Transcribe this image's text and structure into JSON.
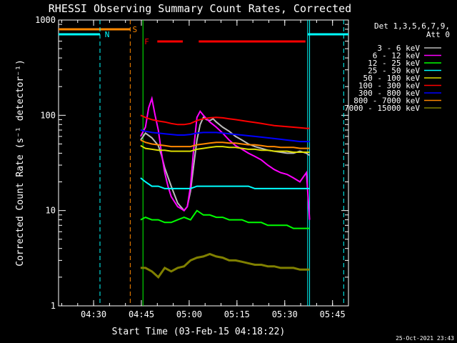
{
  "chart_data": {
    "type": "line",
    "title": "RHESSI Observing Summary Count Rates, Corrected",
    "xlabel": "Start Time (03-Feb-15 04:18:22)",
    "ylabel": "Corrected Count Rate (s⁻¹ detector⁻¹)",
    "yscale": "log",
    "ylim": [
      1,
      1000
    ],
    "y_ticks": [
      {
        "value": 1,
        "label": "1"
      },
      {
        "value": 10,
        "label": "10"
      },
      {
        "value": 100,
        "label": "100"
      },
      {
        "value": 1000,
        "label": "1000"
      }
    ],
    "xlim_minutes": [
      19,
      74
    ],
    "x_ticks": [
      {
        "minute": 30,
        "label": "04:30"
      },
      {
        "minute": 45,
        "label": "04:45"
      },
      {
        "minute": 60,
        "label": "05:00"
      },
      {
        "minute": 75,
        "label": "05:15"
      },
      {
        "minute": 90,
        "label": "05:30"
      },
      {
        "minute": 105,
        "label": "05:45"
      }
    ],
    "legend_title": "Det 1,3,5,6,7,9,",
    "legend_subtitle": "Att 0",
    "footer_timestamp": "25-Oct-2021 23:43",
    "series": [
      {
        "name": "3 - 6 keV",
        "color": "#000000",
        "points": [
          [
            44.5,
            55
          ],
          [
            46,
            65
          ],
          [
            48,
            58
          ],
          [
            50,
            48
          ],
          [
            51,
            38
          ],
          [
            52,
            28
          ],
          [
            54,
            18
          ],
          [
            56,
            12
          ],
          [
            58,
            10
          ],
          [
            59,
            11
          ],
          [
            60,
            16
          ],
          [
            61,
            30
          ],
          [
            62,
            55
          ],
          [
            63,
            80
          ],
          [
            64,
            95
          ],
          [
            65,
            90
          ],
          [
            66,
            88
          ],
          [
            67,
            92
          ],
          [
            68,
            85
          ],
          [
            70,
            75
          ],
          [
            72,
            68
          ],
          [
            74,
            60
          ],
          [
            76,
            55
          ],
          [
            78,
            50
          ],
          [
            80,
            47
          ],
          [
            82,
            45
          ],
          [
            84,
            43
          ],
          [
            86,
            42
          ],
          [
            88,
            41
          ],
          [
            90,
            40
          ],
          [
            92,
            40
          ],
          [
            94,
            42
          ],
          [
            96,
            40
          ],
          [
            97,
            38
          ]
        ]
      },
      {
        "name": "6 - 12 keV",
        "color": "#ff00ff",
        "points": [
          [
            44.5,
            60
          ],
          [
            46,
            75
          ],
          [
            47,
            120
          ],
          [
            48,
            150
          ],
          [
            49,
            100
          ],
          [
            50,
            70
          ],
          [
            51,
            40
          ],
          [
            52,
            25
          ],
          [
            53,
            18
          ],
          [
            54,
            14
          ],
          [
            56,
            11
          ],
          [
            58,
            10
          ],
          [
            59,
            11
          ],
          [
            60,
            18
          ],
          [
            61,
            45
          ],
          [
            62,
            95
          ],
          [
            63,
            110
          ],
          [
            64,
            100
          ],
          [
            65,
            92
          ],
          [
            66,
            85
          ],
          [
            67,
            80
          ],
          [
            68,
            75
          ],
          [
            70,
            65
          ],
          [
            72,
            55
          ],
          [
            74,
            48
          ],
          [
            76,
            44
          ],
          [
            78,
            40
          ],
          [
            80,
            37
          ],
          [
            82,
            34
          ],
          [
            84,
            30
          ],
          [
            86,
            27
          ],
          [
            88,
            25
          ],
          [
            90,
            24
          ],
          [
            92,
            22
          ],
          [
            94,
            20
          ],
          [
            96,
            25
          ],
          [
            97,
            8
          ]
        ]
      },
      {
        "name": "12 - 25 keV",
        "color": "#00ff00",
        "points": [
          [
            44.5,
            8
          ],
          [
            46,
            8.5
          ],
          [
            48,
            8
          ],
          [
            50,
            8
          ],
          [
            52,
            7.5
          ],
          [
            54,
            7.5
          ],
          [
            56,
            8
          ],
          [
            58,
            8.5
          ],
          [
            60,
            8
          ],
          [
            62,
            10
          ],
          [
            64,
            9
          ],
          [
            66,
            9
          ],
          [
            68,
            8.5
          ],
          [
            70,
            8.5
          ],
          [
            72,
            8
          ],
          [
            74,
            8
          ],
          [
            76,
            8
          ],
          [
            78,
            7.5
          ],
          [
            80,
            7.5
          ],
          [
            82,
            7.5
          ],
          [
            84,
            7
          ],
          [
            86,
            7
          ],
          [
            88,
            7
          ],
          [
            90,
            7
          ],
          [
            92,
            6.5
          ],
          [
            94,
            6.5
          ],
          [
            96,
            6.5
          ],
          [
            97,
            6.5
          ]
        ]
      },
      {
        "name": "25 - 50 keV",
        "color": "#00ffff",
        "points": [
          [
            44.5,
            22
          ],
          [
            46,
            20
          ],
          [
            48,
            18
          ],
          [
            50,
            18
          ],
          [
            52,
            17
          ],
          [
            54,
            17
          ],
          [
            56,
            17
          ],
          [
            58,
            17
          ],
          [
            60,
            17
          ],
          [
            62,
            18
          ],
          [
            64,
            18
          ],
          [
            66,
            18
          ],
          [
            68,
            18
          ],
          [
            70,
            18
          ],
          [
            72,
            18
          ],
          [
            74,
            18
          ],
          [
            76,
            18
          ],
          [
            78,
            18
          ],
          [
            80,
            17
          ],
          [
            82,
            17
          ],
          [
            84,
            17
          ],
          [
            86,
            17
          ],
          [
            88,
            17
          ],
          [
            90,
            17
          ],
          [
            92,
            17
          ],
          [
            94,
            17
          ],
          [
            96,
            17
          ],
          [
            97,
            17
          ]
        ]
      },
      {
        "name": "50 - 100 keV",
        "color": "#dddd00",
        "points": [
          [
            44.5,
            48
          ],
          [
            46,
            45
          ],
          [
            48,
            44
          ],
          [
            50,
            43
          ],
          [
            52,
            43
          ],
          [
            54,
            42
          ],
          [
            56,
            42
          ],
          [
            58,
            42
          ],
          [
            60,
            42
          ],
          [
            62,
            44
          ],
          [
            64,
            45
          ],
          [
            66,
            46
          ],
          [
            68,
            47
          ],
          [
            70,
            47
          ],
          [
            72,
            46
          ],
          [
            74,
            46
          ],
          [
            76,
            45
          ],
          [
            78,
            44
          ],
          [
            80,
            44
          ],
          [
            82,
            43
          ],
          [
            84,
            43
          ],
          [
            86,
            42
          ],
          [
            88,
            42
          ],
          [
            90,
            42
          ],
          [
            92,
            41
          ],
          [
            94,
            41
          ],
          [
            96,
            41
          ],
          [
            97,
            41
          ]
        ]
      },
      {
        "name": "100 - 300 keV",
        "color": "#ff0000",
        "points": [
          [
            44.5,
            100
          ],
          [
            46,
            95
          ],
          [
            48,
            90
          ],
          [
            50,
            87
          ],
          [
            52,
            85
          ],
          [
            54,
            82
          ],
          [
            56,
            80
          ],
          [
            58,
            80
          ],
          [
            60,
            82
          ],
          [
            62,
            88
          ],
          [
            64,
            92
          ],
          [
            66,
            94
          ],
          [
            68,
            95
          ],
          [
            70,
            94
          ],
          [
            72,
            92
          ],
          [
            74,
            90
          ],
          [
            76,
            88
          ],
          [
            78,
            86
          ],
          [
            80,
            84
          ],
          [
            82,
            82
          ],
          [
            84,
            80
          ],
          [
            86,
            78
          ],
          [
            88,
            77
          ],
          [
            90,
            76
          ],
          [
            92,
            75
          ],
          [
            94,
            74
          ],
          [
            96,
            73
          ],
          [
            97,
            73
          ]
        ]
      },
      {
        "name": "300 - 800 keV",
        "color": "#0000ff",
        "points": [
          [
            44.5,
            70
          ],
          [
            46,
            68
          ],
          [
            48,
            66
          ],
          [
            50,
            65
          ],
          [
            52,
            64
          ],
          [
            54,
            63
          ],
          [
            56,
            62
          ],
          [
            58,
            62
          ],
          [
            60,
            63
          ],
          [
            62,
            65
          ],
          [
            64,
            66
          ],
          [
            66,
            66
          ],
          [
            68,
            66
          ],
          [
            70,
            65
          ],
          [
            72,
            64
          ],
          [
            74,
            63
          ],
          [
            76,
            62
          ],
          [
            78,
            61
          ],
          [
            80,
            60
          ],
          [
            82,
            59
          ],
          [
            84,
            58
          ],
          [
            86,
            57
          ],
          [
            88,
            56
          ],
          [
            90,
            55
          ],
          [
            92,
            54
          ],
          [
            94,
            53
          ],
          [
            96,
            53
          ],
          [
            97,
            53
          ]
        ]
      },
      {
        "name": "800 - 7000 keV",
        "color": "#ff8800",
        "points": [
          [
            44.5,
            55
          ],
          [
            46,
            52
          ],
          [
            48,
            50
          ],
          [
            50,
            49
          ],
          [
            52,
            48
          ],
          [
            54,
            47
          ],
          [
            56,
            47
          ],
          [
            58,
            47
          ],
          [
            60,
            47
          ],
          [
            62,
            49
          ],
          [
            64,
            50
          ],
          [
            66,
            51
          ],
          [
            68,
            52
          ],
          [
            70,
            52
          ],
          [
            72,
            51
          ],
          [
            74,
            51
          ],
          [
            76,
            50
          ],
          [
            78,
            49
          ],
          [
            80,
            49
          ],
          [
            82,
            48
          ],
          [
            84,
            47
          ],
          [
            86,
            47
          ],
          [
            88,
            46
          ],
          [
            90,
            46
          ],
          [
            92,
            46
          ],
          [
            94,
            45
          ],
          [
            96,
            45
          ],
          [
            97,
            45
          ]
        ]
      },
      {
        "name": "7000 - 15000 keV",
        "color": "#808000",
        "points": [
          [
            44.5,
            2.5
          ],
          [
            46,
            2.5
          ],
          [
            48,
            2.3
          ],
          [
            50,
            2.0
          ],
          [
            52,
            2.5
          ],
          [
            54,
            2.3
          ],
          [
            56,
            2.5
          ],
          [
            58,
            2.6
          ],
          [
            60,
            3
          ],
          [
            62,
            3.2
          ],
          [
            64,
            3.3
          ],
          [
            66,
            3.5
          ],
          [
            68,
            3.3
          ],
          [
            70,
            3.2
          ],
          [
            72,
            3.0
          ],
          [
            74,
            3.0
          ],
          [
            76,
            2.9
          ],
          [
            78,
            2.8
          ],
          [
            80,
            2.7
          ],
          [
            82,
            2.7
          ],
          [
            84,
            2.6
          ],
          [
            86,
            2.6
          ],
          [
            88,
            2.5
          ],
          [
            90,
            2.5
          ],
          [
            92,
            2.5
          ],
          [
            94,
            2.4
          ],
          [
            96,
            2.4
          ],
          [
            97,
            2.4
          ]
        ]
      }
    ],
    "flags": [
      {
        "label": "S",
        "color": "#ff8800"
      },
      {
        "label": "N",
        "color": "#00ffff"
      },
      {
        "label": "F",
        "color": "#ff0000"
      }
    ]
  }
}
